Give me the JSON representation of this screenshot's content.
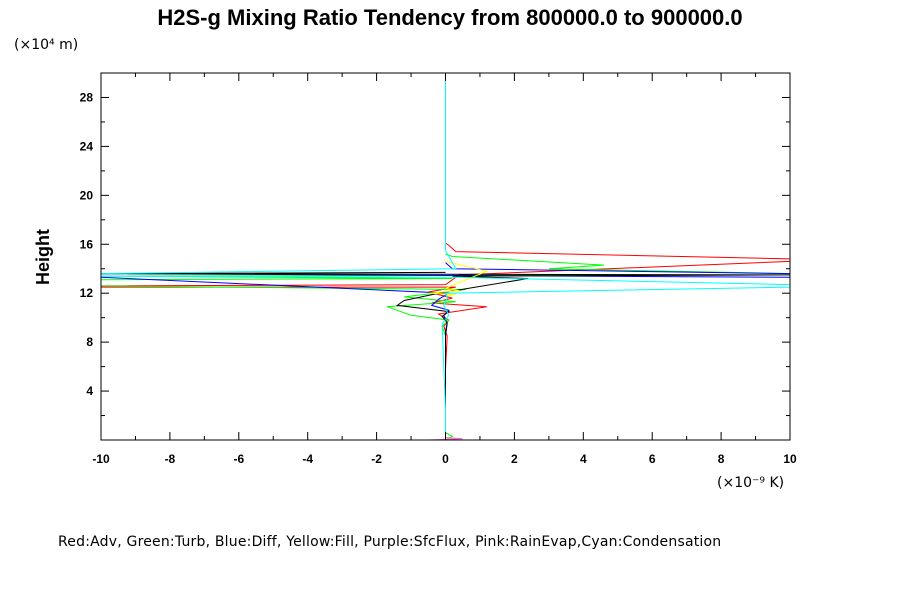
{
  "chart_data": {
    "type": "line",
    "title": "H2S-g Mixing Ratio Tendency from 800000.0 to 900000.0",
    "y_unit": "(×10⁴ m)",
    "x_unit": "(×10⁻⁹ K)",
    "ylabel": "Height",
    "xlim": [
      -10,
      10
    ],
    "ylim": [
      0,
      30
    ],
    "x_ticks": [
      -10,
      -8,
      -6,
      -4,
      -2,
      0,
      2,
      4,
      6,
      8,
      10
    ],
    "y_ticks": [
      4,
      8,
      12,
      16,
      20,
      24,
      28
    ],
    "legend_text": "Red:Adv, Green:Turb, Blue:Diff, Yellow:Fill, Purple:SfcFlux, Pink:RainEvap,Cyan:Condensation",
    "series": [
      {
        "color": "#ff0000",
        "x": [
          0,
          0,
          0,
          0.05,
          -0.05,
          0.1,
          -0.2,
          1.2,
          -0.4,
          0.2,
          -0.5,
          0.3,
          -10,
          -10,
          0,
          0.4,
          10,
          10,
          0.3,
          0.1,
          0
        ],
        "y": [
          0,
          0.4,
          5.8,
          8.5,
          9.3,
          9.8,
          10.3,
          10.9,
          11.2,
          11.6,
          12.1,
          12.5,
          12.5,
          12.6,
          12.7,
          13.5,
          14.6,
          14.8,
          15.4,
          15.9,
          16.1
        ]
      },
      {
        "color": "#00ff00",
        "x": [
          0,
          0.2,
          0,
          0,
          -0.1,
          0.1,
          -1.0,
          -1.7,
          0.3,
          -1.2,
          0.6,
          -10,
          -10,
          0.2,
          -10,
          10,
          10,
          3.0,
          4.6,
          0.2,
          0
        ],
        "y": [
          0,
          0.3,
          0.6,
          8.5,
          9.3,
          9.8,
          10.2,
          10.9,
          11.3,
          11.7,
          12.3,
          12.6,
          13.1,
          13.2,
          13.4,
          13.5,
          13.6,
          14.0,
          14.3,
          15.0,
          15.2
        ]
      },
      {
        "color": "#0000ff",
        "x": [
          0,
          0,
          0.05,
          -0.05,
          0.1,
          -0.4,
          -0.2,
          0.1,
          -10,
          -10,
          10,
          10,
          0.2,
          0
        ],
        "y": [
          0,
          8.5,
          9.5,
          10.2,
          10.6,
          11.0,
          11.5,
          12.0,
          13.3,
          13.6,
          13.3,
          13.6,
          14.0,
          14.5
        ]
      },
      {
        "color": "#000000",
        "x": [
          0,
          0,
          0.05,
          -0.1,
          0.1,
          -1.4,
          -1.2,
          -0.2,
          2.4,
          0.2,
          10,
          -10,
          0
        ],
        "y": [
          0.2,
          8.8,
          9.6,
          10.1,
          10.5,
          11.0,
          11.4,
          12.0,
          13.2,
          13.4,
          13.5,
          13.6,
          13.7
        ]
      },
      {
        "color": "#ffff00",
        "x": [
          0,
          0.3,
          -0.5,
          0.4,
          0,
          1.2,
          0
        ],
        "y": [
          11.8,
          11.9,
          12.0,
          12.2,
          12.4,
          13.8,
          14.6
        ]
      },
      {
        "color": "#00ffff",
        "x": [
          0,
          0,
          -0.1,
          0.1,
          -0.05,
          0.05,
          0,
          10,
          10,
          0.3,
          -10,
          -10,
          0.3,
          0,
          0,
          0
        ],
        "y": [
          0,
          2.5,
          9.5,
          10.2,
          11.0,
          11.6,
          12.0,
          12.5,
          12.7,
          13.3,
          13.4,
          13.6,
          14.0,
          15.5,
          29,
          30
        ]
      },
      {
        "color": "#ff66cc",
        "x": [
          -0.5,
          0.5,
          0
        ],
        "y": [
          0,
          0.1,
          0.2
        ]
      }
    ]
  }
}
